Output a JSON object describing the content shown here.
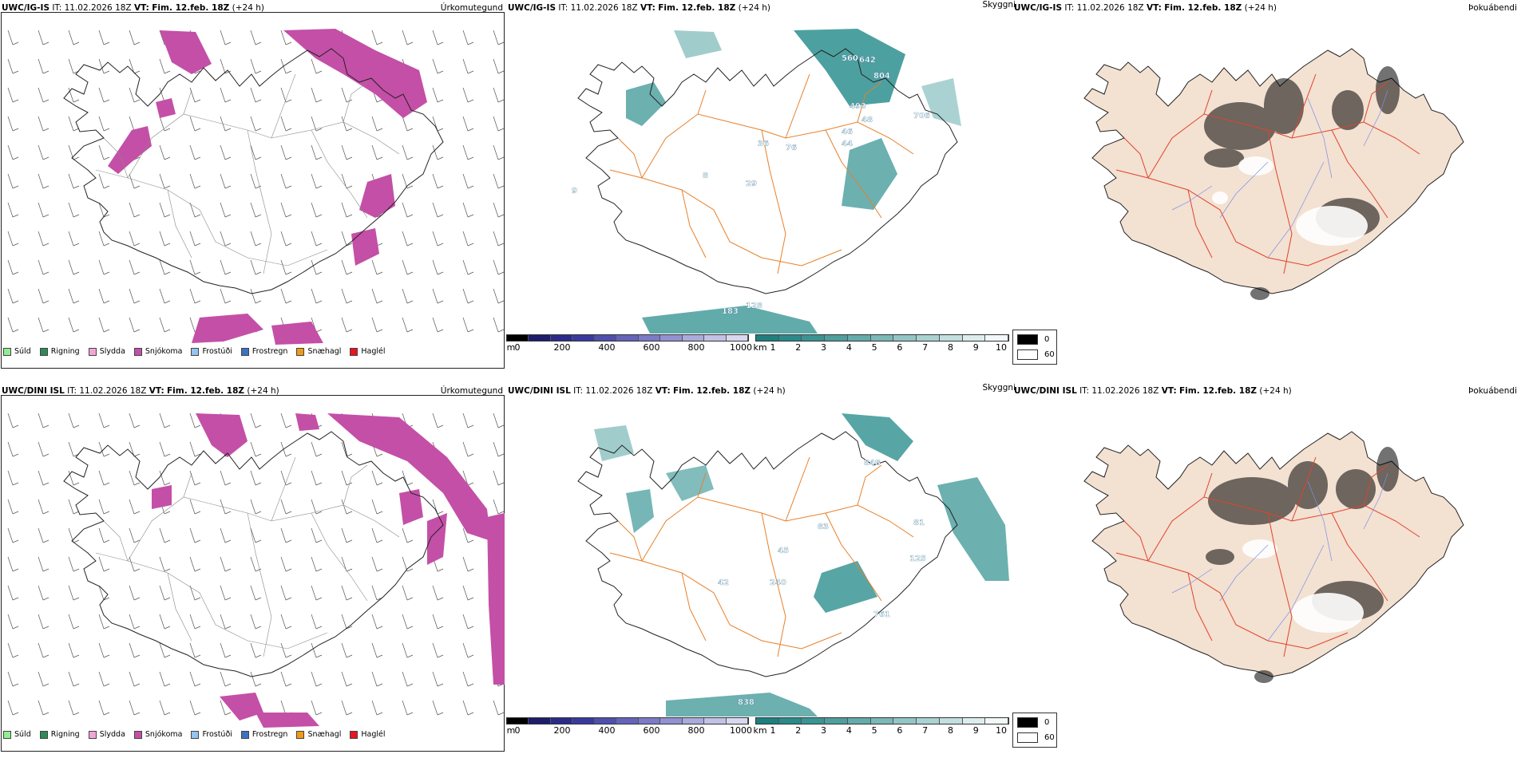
{
  "rows": [
    {
      "model": "UWC/IG-IS",
      "it_label": "IT:",
      "it_value": "11.02.2026 18Z",
      "vt_label": "VT:",
      "vt_value": "Fim. 12.feb. 18Z",
      "lead": "(+24 h)",
      "panel_titles": [
        "Úrkomutegund",
        "Skyggni",
        "Þokuábendi"
      ],
      "visibility_labels": [
        "560",
        "642",
        "804",
        "493",
        "48",
        "706",
        "46",
        "44",
        "36",
        "76",
        "29",
        "128",
        "183",
        "9",
        "8"
      ]
    },
    {
      "model": "UWC/DINI ISL",
      "it_label": "IT:",
      "it_value": "11.02.2026 18Z",
      "vt_label": "VT:",
      "vt_value": "Fim. 12.feb. 18Z",
      "lead": "(+24 h)",
      "panel_titles": [
        "Úrkomutegund",
        "Skyggni",
        "Þokuábendi"
      ],
      "visibility_labels": [
        "848",
        "81",
        "125",
        "240",
        "42",
        "761",
        "838",
        "45",
        "83"
      ]
    }
  ],
  "precip_legend": [
    {
      "label": "Súld",
      "color": "#90ee90"
    },
    {
      "label": "Rigning",
      "color": "#2e8b57"
    },
    {
      "label": "Slydda",
      "color": "#f3a6d6"
    },
    {
      "label": "Snjókoma",
      "color": "#c44fa7"
    },
    {
      "label": "Frostúði",
      "color": "#93c5f0"
    },
    {
      "label": "Frostregn",
      "color": "#3a73c2"
    },
    {
      "label": "Snæhagl",
      "color": "#f09a1a"
    },
    {
      "label": "Haglél",
      "color": "#e8141e"
    }
  ],
  "colorbar_m": {
    "unit": "m",
    "ticks": [
      "0",
      "200",
      "400",
      "600",
      "800",
      "1000"
    ],
    "colors": [
      "#000000",
      "#1d1d6b",
      "#2b2b8a",
      "#3a3a9e",
      "#4f4fae",
      "#6464bb",
      "#7b7bc7",
      "#9292d2",
      "#aaaadc",
      "#c2c2e6",
      "#d8d8f0"
    ]
  },
  "colorbar_km": {
    "unit": "km",
    "ticks": [
      "1",
      "2",
      "3",
      "4",
      "5",
      "6",
      "7",
      "8",
      "9",
      "10"
    ],
    "colors": [
      "#1e7f7f",
      "#2a8a8a",
      "#3a9494",
      "#4f9f9f",
      "#64abab",
      "#7bb8b8",
      "#93c5c5",
      "#abd2d2",
      "#c3dfdf",
      "#ddeded",
      "#f2f8f8"
    ]
  },
  "fog_legend": [
    {
      "label": "0",
      "color": "#000000"
    },
    {
      "label": "60",
      "color": "#ffffff"
    }
  ],
  "colors": {
    "coast": "#222222",
    "road": "#e8802a",
    "fog_land": "#f3e1d2",
    "fog_road": "#e0432a",
    "fog_river": "#7d8fe8",
    "teal": "#2e8f8f",
    "snow": "#c44fa7"
  }
}
